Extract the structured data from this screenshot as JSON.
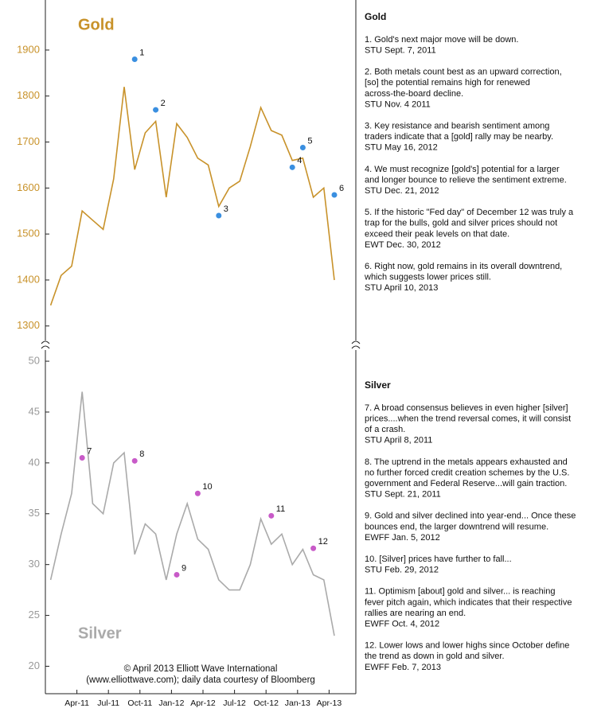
{
  "chart_data": [
    {
      "type": "line",
      "title": "Gold",
      "color": "#c8922a",
      "tick_color": "#c8922a",
      "x": [
        "Jan-11",
        "Feb-11",
        "Mar-11",
        "Apr-11",
        "May-11",
        "Jun-11",
        "Jul-11",
        "Aug-11",
        "Sep-11",
        "Oct-11",
        "Nov-11",
        "Dec-11",
        "Jan-12",
        "Feb-12",
        "Mar-12",
        "Apr-12",
        "May-12",
        "Jun-12",
        "Jul-12",
        "Aug-12",
        "Sep-12",
        "Oct-12",
        "Nov-12",
        "Dec-12",
        "Jan-13",
        "Feb-13",
        "Mar-13",
        "Apr-13"
      ],
      "values": [
        1345,
        1410,
        1430,
        1550,
        1530,
        1510,
        1620,
        1820,
        1640,
        1720,
        1745,
        1580,
        1740,
        1710,
        1665,
        1650,
        1560,
        1600,
        1615,
        1690,
        1775,
        1725,
        1715,
        1660,
        1665,
        1580,
        1600,
        1400
      ],
      "ylim": [
        1265,
        1995
      ],
      "yticks": [
        1300,
        1400,
        1500,
        1600,
        1700,
        1800,
        1900
      ],
      "annotation_color": "#3a8fe0",
      "annotations": [
        {
          "label": "1",
          "x": "Sep-11",
          "value": 1880
        },
        {
          "label": "2",
          "x": "Nov-11",
          "value": 1770
        },
        {
          "label": "3",
          "x": "May-12",
          "value": 1540
        },
        {
          "label": "4",
          "x": "Dec-12",
          "value": 1645
        },
        {
          "label": "5",
          "x": "Jan-13",
          "value": 1688
        },
        {
          "label": "6",
          "x": "Apr-13",
          "value": 1585
        }
      ]
    },
    {
      "type": "line",
      "title": "Silver",
      "color": "#aaaaaa",
      "tick_color": "#999999",
      "x": [
        "Jan-11",
        "Feb-11",
        "Mar-11",
        "Apr-11",
        "May-11",
        "Jun-11",
        "Jul-11",
        "Aug-11",
        "Sep-11",
        "Oct-11",
        "Nov-11",
        "Dec-11",
        "Jan-12",
        "Feb-12",
        "Mar-12",
        "Apr-12",
        "May-12",
        "Jun-12",
        "Jul-12",
        "Aug-12",
        "Sep-12",
        "Oct-12",
        "Nov-12",
        "Dec-12",
        "Jan-13",
        "Feb-13",
        "Mar-13",
        "Apr-13"
      ],
      "values": [
        28.5,
        33,
        37,
        47,
        36,
        35,
        40,
        41,
        31,
        34,
        33,
        28.5,
        33,
        36,
        32.5,
        31.5,
        28.5,
        27.5,
        27.5,
        30,
        34.5,
        32,
        33,
        30,
        31.5,
        29,
        28.5,
        23
      ],
      "ylim": [
        17.3,
        51.1
      ],
      "yticks": [
        20,
        25,
        30,
        35,
        40,
        45,
        50
      ],
      "xticks": [
        "Apr-11",
        "Jul-11",
        "Oct-11",
        "Jan-12",
        "Apr-12",
        "Jul-12",
        "Oct-12",
        "Jan-13",
        "Apr-13"
      ],
      "annotation_color": "#c85ac8",
      "annotations": [
        {
          "label": "7",
          "x": "Apr-11",
          "value": 40.5
        },
        {
          "label": "8",
          "x": "Sep-11",
          "value": 40.2
        },
        {
          "label": "9",
          "x": "Jan-12",
          "value": 29
        },
        {
          "label": "10",
          "x": "Mar-12",
          "value": 37
        },
        {
          "label": "11",
          "x": "Oct-12",
          "value": 34.8
        },
        {
          "label": "12",
          "x": "Feb-13",
          "value": 31.6
        }
      ],
      "note_lines": [
        "© April 2013 Elliott Wave International",
        "(www.elliottwave.com); daily data courtesy of Bloomberg"
      ]
    }
  ],
  "side_notes": [
    {
      "heading": "Gold",
      "notes": [
        [
          "1. Gold's next major move will be down.",
          "STU Sept. 7, 2011"
        ],
        [
          "2. Both metals count best as an upward correction,",
          "[so] the potential remains high for renewed",
          "across-the-board decline.",
          "STU Nov. 4 2011"
        ],
        [
          "3. Key resistance and bearish sentiment among",
          "traders indicate that a [gold] rally may be nearby.",
          "STU May 16, 2012"
        ],
        [
          "4. We must recognize [gold's] potential for a larger",
          "and longer bounce to relieve the sentiment extreme.",
          "STU Dec. 21, 2012"
        ],
        [
          "5. If the historic \"Fed day\" of December 12 was truly a",
          "trap for the bulls, gold and silver prices should not",
          "exceed their peak levels on that date.",
          "EWT Dec. 30, 2012"
        ],
        [
          "6. Right now, gold remains in its overall downtrend,",
          "which suggests lower prices still.",
          "STU April 10, 2013"
        ]
      ]
    },
    {
      "heading": "Silver",
      "notes": [
        [
          "7. A broad consensus believes in even higher [silver]",
          "prices....when the trend reversal comes, it will consist",
          "of a crash.",
          "STU April 8, 2011"
        ],
        [
          "8. The uptrend in the metals appears exhausted and",
          "no further forced credit creation schemes by the U.S.",
          "government and Federal Reserve...will gain traction.",
          "STU Sept. 21, 2011"
        ],
        [
          "9. Gold and silver declined into year-end... Once these",
          "bounces end, the larger downtrend will resume.",
          "EWFF Jan. 5, 2012"
        ],
        [
          "10. [Silver] prices have further to fall...",
          "STU Feb. 29, 2012"
        ],
        [
          "11. Optimism [about] gold and silver... is reaching",
          "fever pitch again, which indicates that their respective",
          "rallies are nearing an end.",
          "EWFF Oct. 4, 2012"
        ],
        [
          "12. Lower lows and lower highs since October define",
          "the trend as down in gold and silver.",
          "EWFF Feb. 7, 2013"
        ]
      ]
    }
  ]
}
